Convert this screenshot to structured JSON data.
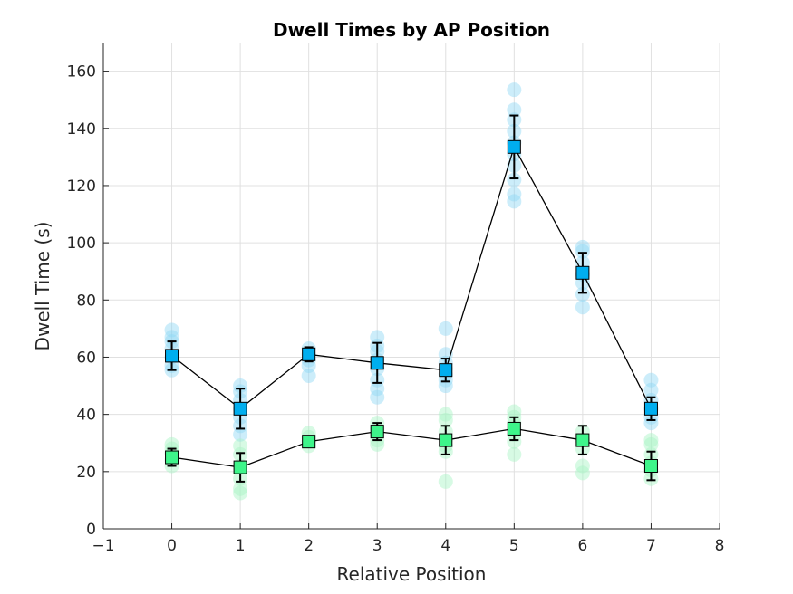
{
  "chart_data": {
    "type": "scatter",
    "title": "Dwell Times by AP Position",
    "xlabel": "Relative Position",
    "ylabel": "Dwell Time (s)",
    "xlim": [
      -1,
      8
    ],
    "ylim": [
      0,
      170
    ],
    "x_ticks": [
      -1,
      0,
      1,
      2,
      3,
      4,
      5,
      6,
      7,
      8
    ],
    "x_tick_labels": [
      "−1",
      "0",
      "1",
      "2",
      "3",
      "4",
      "5",
      "6",
      "7",
      "8"
    ],
    "y_ticks": [
      0,
      20,
      40,
      60,
      80,
      100,
      120,
      140,
      160
    ],
    "y_tick_labels": [
      "0",
      "20",
      "40",
      "60",
      "80",
      "100",
      "120",
      "140",
      "160"
    ],
    "grid": true,
    "legend": "none",
    "colors": {
      "series_a_marker": "#00aeef",
      "series_a_points": "#8fd8f5",
      "series_b_marker": "#3ef58a",
      "series_b_points": "#a6f5c4",
      "line": "#000000",
      "grid": "#e0e0e0",
      "axis": "#262626"
    },
    "series": [
      {
        "x": [
          0,
          1,
          2,
          3,
          4,
          5,
          6,
          7
        ],
        "mean": [
          60.5,
          42,
          61,
          58,
          55.5,
          133.5,
          89.5,
          42
        ],
        "error": [
          5,
          7,
          2.5,
          7,
          4,
          11,
          7,
          4
        ],
        "points": [
          [
            55.5,
            57,
            60,
            63,
            65.5,
            67,
            69.5
          ],
          [
            33,
            36,
            39,
            42,
            45,
            48,
            50
          ],
          [
            53.5,
            57,
            59,
            61,
            63
          ],
          [
            46,
            49,
            52,
            56,
            59,
            62,
            64,
            67
          ],
          [
            50,
            52,
            54,
            56,
            58,
            61,
            70
          ],
          [
            114.5,
            117,
            122,
            127,
            131,
            135,
            139,
            143,
            146.5,
            153.5
          ],
          [
            77.5,
            82,
            86,
            89,
            93,
            97,
            98.5
          ],
          [
            37,
            39,
            42,
            45,
            48.5,
            52
          ]
        ]
      },
      {
        "x": [
          0,
          1,
          2,
          3,
          4,
          5,
          6,
          7
        ],
        "mean": [
          25,
          21.5,
          30.5,
          34,
          31,
          35,
          31,
          22
        ],
        "error": [
          3,
          5,
          1.5,
          3,
          5,
          4,
          5,
          5
        ],
        "points": [
          [
            22,
            24,
            26.5,
            28,
            29.5
          ],
          [
            12.5,
            14,
            17.5,
            22,
            26,
            29
          ],
          [
            29,
            30.5,
            32,
            33.5
          ],
          [
            29.5,
            31,
            33,
            35,
            37
          ],
          [
            16.5,
            27,
            29,
            31,
            34,
            38,
            40
          ],
          [
            26,
            30.5,
            33,
            35,
            37,
            39,
            41
          ],
          [
            19.5,
            22,
            28,
            31,
            34
          ],
          [
            17.5,
            20.5,
            23,
            26,
            29.5,
            31
          ]
        ]
      }
    ]
  }
}
